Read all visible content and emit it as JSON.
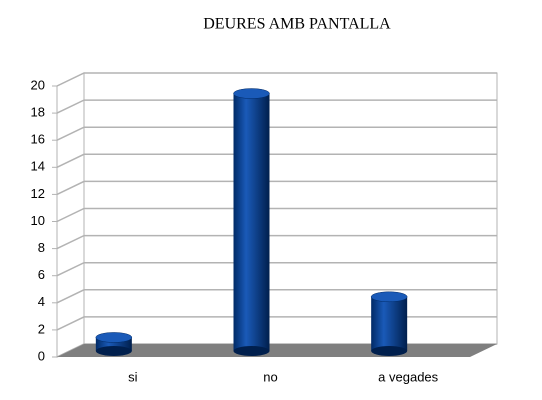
{
  "chart_data": {
    "type": "bar",
    "title": "DEURES AMB PANTALLA",
    "categories": [
      "si",
      "no",
      "a vegades"
    ],
    "values": [
      1,
      19,
      4
    ],
    "color": "#003f8f",
    "ylim": [
      0,
      20
    ],
    "yticks": [
      0,
      2,
      4,
      6,
      8,
      10,
      12,
      14,
      16,
      18,
      20
    ],
    "grid": true
  }
}
